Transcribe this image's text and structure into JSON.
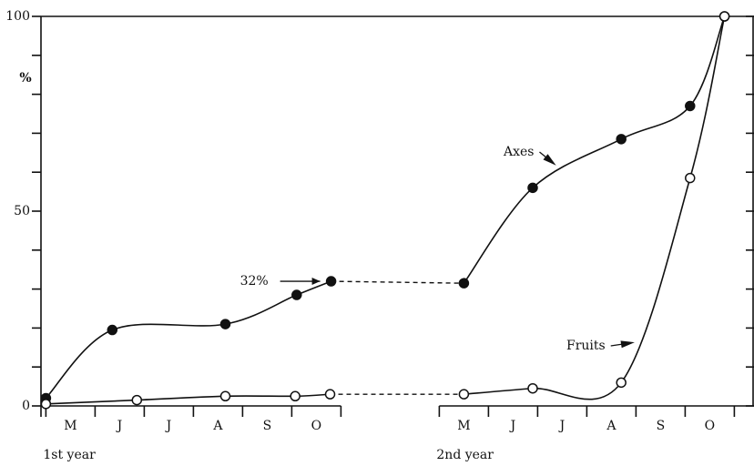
{
  "chart_data": {
    "type": "line",
    "y_label": "%",
    "x": [
      0,
      1.35,
      3.65,
      5.1,
      5.8,
      8.5,
      9.9,
      11.7,
      13.1,
      13.8
    ],
    "series": [
      {
        "name": "Axes",
        "color": "#111111",
        "marker_fill": "filled",
        "values": [
          2,
          19.5,
          21,
          28.5,
          32,
          31.5,
          56,
          68.5,
          77,
          100
        ],
        "value_labels": [
          null,
          null,
          null,
          null,
          "32%",
          null,
          null,
          null,
          null,
          null
        ]
      },
      {
        "name": "Fruits",
        "color": "#111111",
        "marker_fill": "open",
        "x": [
          0,
          1.85,
          3.65,
          5.07,
          5.78,
          8.5,
          9.9,
          11.7,
          13.1,
          13.8
        ],
        "values": [
          0.5,
          1.5,
          2.5,
          2.5,
          3,
          3,
          4.5,
          6,
          58.5,
          100
        ]
      }
    ],
    "dashed_segment": [
      4,
      5
    ],
    "xlim": [
      -0.1,
      14.4
    ],
    "xticks": [
      {
        "value": 0.5,
        "label": "M"
      },
      {
        "value": 1.5,
        "label": "J"
      },
      {
        "value": 2.5,
        "label": "J"
      },
      {
        "value": 3.5,
        "label": "A"
      },
      {
        "value": 4.5,
        "label": "S"
      },
      {
        "value": 5.5,
        "label": "O"
      },
      {
        "value": 8.5,
        "label": "M"
      },
      {
        "value": 9.5,
        "label": "J"
      },
      {
        "value": 10.5,
        "label": "J"
      },
      {
        "value": 11.5,
        "label": "A"
      },
      {
        "value": 12.5,
        "label": "S"
      },
      {
        "value": 13.5,
        "label": "O"
      }
    ],
    "xticks_minor": [
      0,
      1,
      2,
      3,
      4,
      5,
      6,
      8,
      9,
      10,
      11,
      12,
      13,
      14
    ],
    "axis_break": [
      6,
      8
    ],
    "groups": [
      {
        "label": "1st year",
        "start": 0
      },
      {
        "label": "2nd year",
        "start": 8
      }
    ],
    "ylim": [
      0,
      100
    ],
    "yticks": [
      0,
      50,
      100
    ],
    "yticks_minor": [
      10,
      20,
      30,
      40,
      60,
      70,
      80,
      90
    ]
  }
}
